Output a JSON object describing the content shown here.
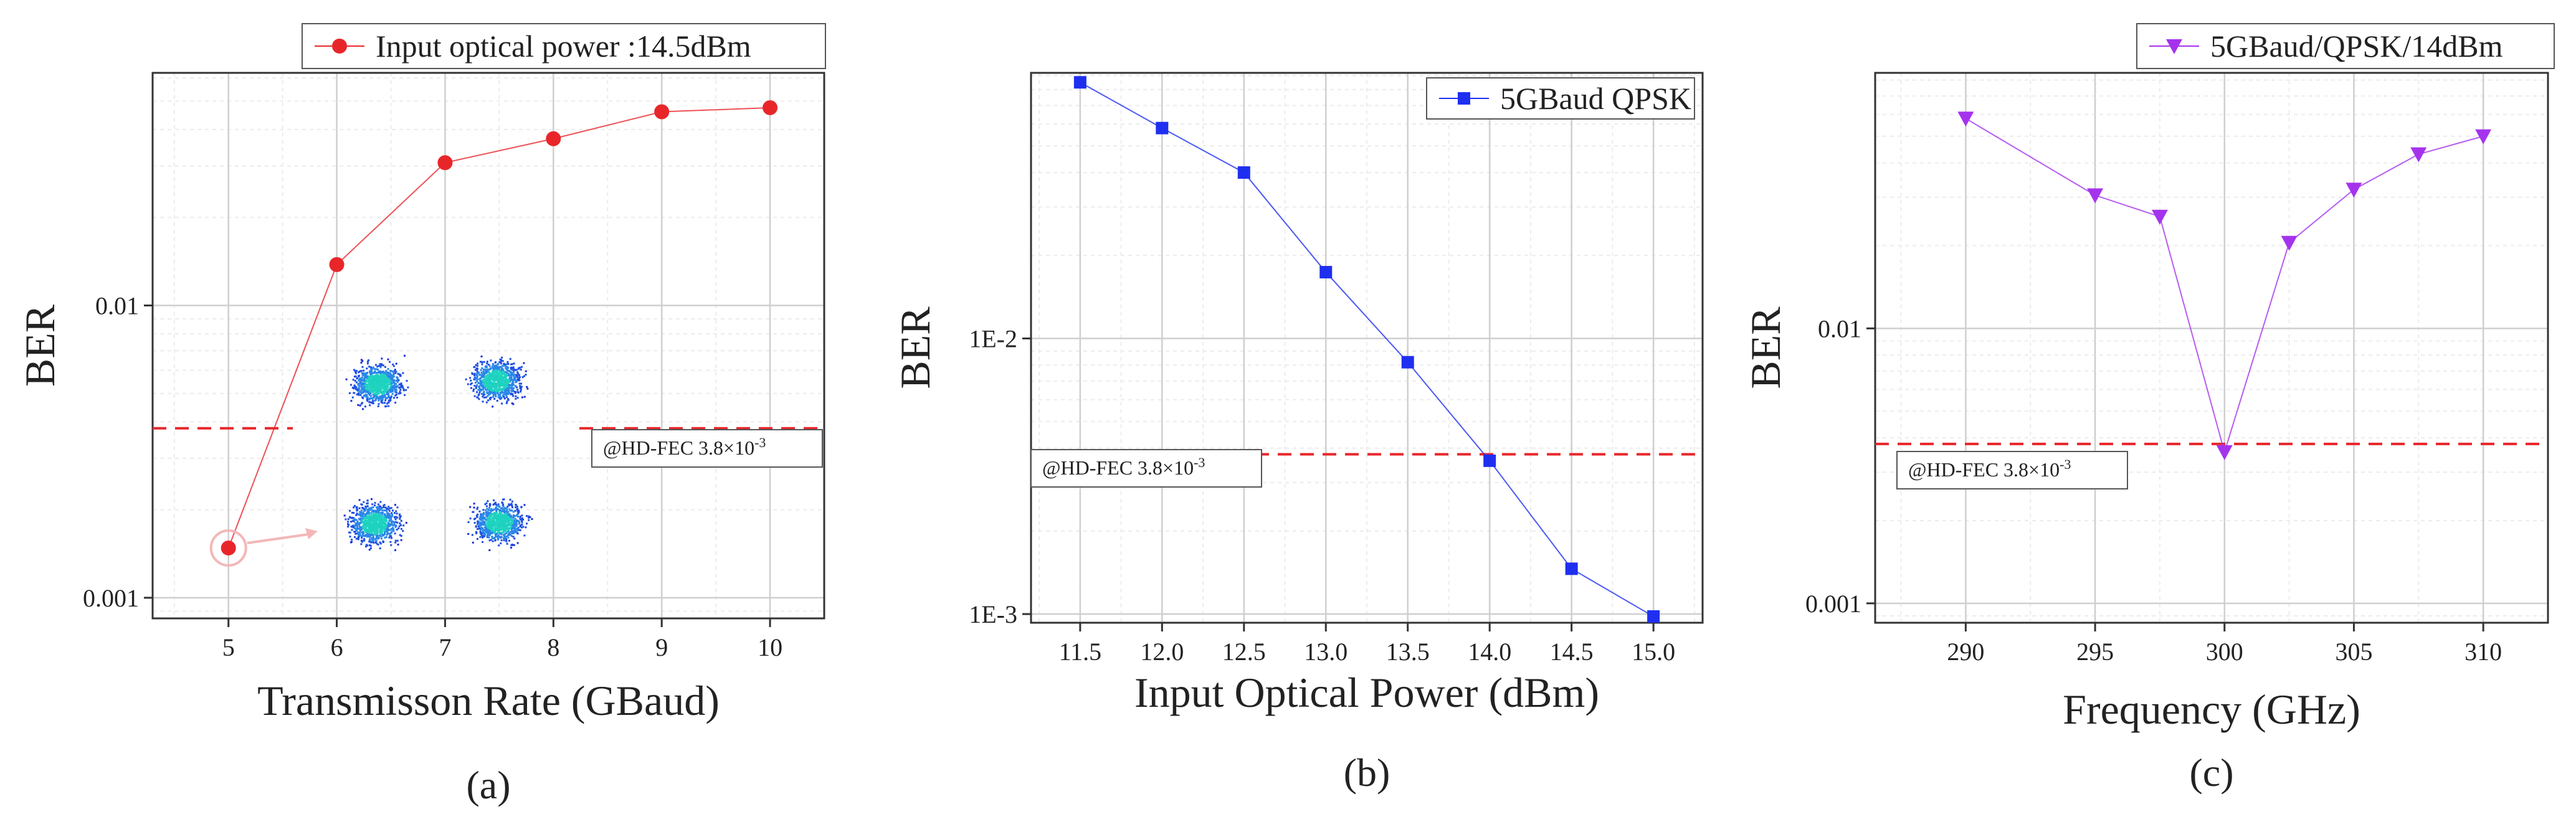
{
  "chart_data": [
    {
      "type": "line",
      "panel_label": "(a)",
      "xlabel": "Transmisson Rate (GBaud)",
      "ylabel": "BER",
      "yscale": "log",
      "ylim": [
        0.00085,
        0.0625
      ],
      "xlim": [
        4.3,
        10.5
      ],
      "xticks": [
        5,
        6,
        7,
        8,
        9,
        10
      ],
      "xtick_labels": [
        "5",
        "6",
        "7",
        "8",
        "9",
        "10"
      ],
      "yticks": [
        0.001,
        0.01
      ],
      "ytick_labels": [
        "0.001",
        "0.01"
      ],
      "grid": true,
      "legend_position": "top-right, outside",
      "series": [
        {
          "name": "Input optical power :14.5dBm",
          "color": "#e8262a",
          "marker": "circle",
          "x": [
            5,
            6,
            7,
            8,
            9,
            10
          ],
          "y": [
            0.00148,
            0.0138,
            0.0308,
            0.0372,
            0.046,
            0.0475
          ]
        }
      ],
      "threshold": {
        "value": 0.0038,
        "label_prefix": "@HD-FEC 3.8×10",
        "label_exp": "-3",
        "color": "#e8262a"
      },
      "annotations": [
        "constellation diagrams (QPSK) inset",
        "highlighted point at 5 GBaud"
      ]
    },
    {
      "type": "line",
      "panel_label": "(b)",
      "xlabel": "Input Optical Power (dBm)",
      "ylabel": "BER",
      "yscale": "log",
      "ylim": [
        0.00093,
        0.092
      ],
      "xlim": [
        11.2,
        15.3
      ],
      "xticks": [
        11.5,
        12.0,
        12.5,
        13.0,
        13.5,
        14.0,
        14.5,
        15.0
      ],
      "xtick_labels": [
        "11.5",
        "12.0",
        "12.5",
        "13.0",
        "13.5",
        "14.0",
        "14.5",
        "15.0"
      ],
      "yticks": [
        0.001,
        0.01
      ],
      "ytick_labels": [
        "1E-3",
        "1E-2"
      ],
      "grid": true,
      "legend_position": "top-right",
      "series": [
        {
          "name": "5GBaud QPSK",
          "color": "#1e2ff0",
          "marker": "square",
          "x": [
            11.5,
            12.0,
            12.5,
            13.0,
            13.5,
            14.0,
            14.5,
            15.0
          ],
          "y": [
            0.085,
            0.058,
            0.04,
            0.0174,
            0.0082,
            0.0036,
            0.00146,
            0.00098
          ]
        }
      ],
      "threshold": {
        "value": 0.0038,
        "label_prefix": "@HD-FEC 3.8×10",
        "label_exp": "-3",
        "color": "#e8262a"
      }
    },
    {
      "type": "line",
      "panel_label": "(c)",
      "xlabel": "Frequency (GHz)",
      "ylabel": "BER",
      "yscale": "log",
      "ylim": [
        0.00085,
        0.085
      ],
      "xlim": [
        286.5,
        312.5
      ],
      "xticks": [
        290,
        295,
        300,
        305,
        310
      ],
      "xtick_labels": [
        "290",
        "295",
        "300",
        "305",
        "310"
      ],
      "yticks": [
        0.001,
        0.01
      ],
      "ytick_labels": [
        "0.001",
        "0.01"
      ],
      "grid": true,
      "legend_position": "top-right, outside",
      "series": [
        {
          "name": "5GBaud/QPSK/14dBm",
          "color": "#a533ee",
          "marker": "triangle-down",
          "x": [
            290,
            295,
            297.5,
            300,
            302.5,
            305,
            307.5,
            310
          ],
          "y": [
            0.058,
            0.0305,
            0.0255,
            0.00355,
            0.0205,
            0.032,
            0.043,
            0.05
          ]
        }
      ],
      "threshold": {
        "value": 0.0038,
        "label_prefix": "@HD-FEC 3.8×10",
        "label_exp": "-3",
        "color": "#e8262a"
      }
    }
  ]
}
